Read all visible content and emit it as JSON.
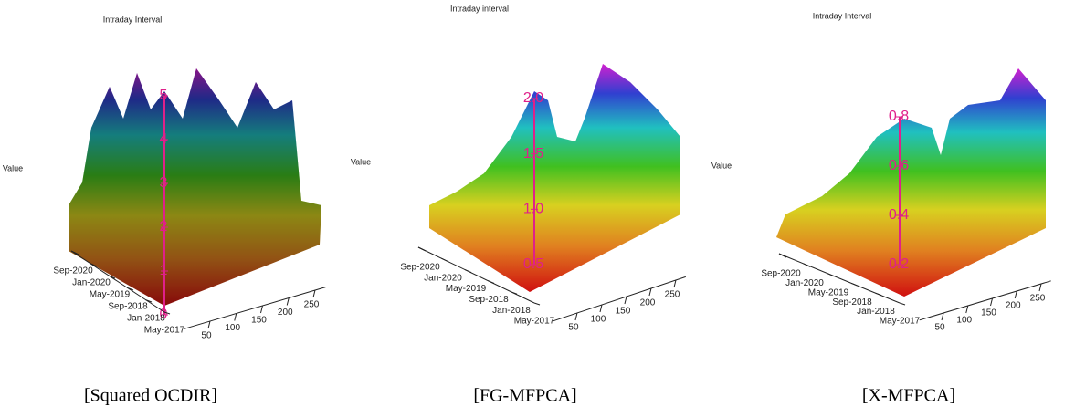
{
  "chart_data": [
    {
      "type": "surface",
      "caption": "[Squared OCDIR]",
      "x_label": "Intraday Interval",
      "z_label": "Value",
      "xlim": [
        1,
        270
      ],
      "xticks": [
        50,
        100,
        150,
        200,
        250
      ],
      "categories": [
        "Sep-2020",
        "Jan-2020",
        "May-2019",
        "Sep-2018",
        "Jan-2018",
        "May-2017"
      ],
      "zlim": [
        0,
        5
      ],
      "zticks": [
        0,
        1,
        2,
        3,
        4,
        5
      ]
    },
    {
      "type": "surface",
      "caption": "[FG-MFPCA]",
      "x_label": "Intraday interval",
      "z_label": "Value",
      "xlim": [
        1,
        270
      ],
      "xticks": [
        50,
        100,
        150,
        200,
        250
      ],
      "categories": [
        "Sep-2020",
        "Jan-2020",
        "May-2019",
        "Sep-2018",
        "Jan-2018",
        "May-2017"
      ],
      "zlim": [
        0.5,
        2.0
      ],
      "zticks": [
        0.5,
        {
          "value": 1.0,
          "label": "1.0"
        },
        1.5,
        {
          "value": 2.0,
          "label": "2.0"
        }
      ]
    },
    {
      "type": "surface",
      "caption": "[X-MFPCA]",
      "x_label": "Intraday Interval",
      "z_label": "Value",
      "xlim": [
        1,
        270
      ],
      "xticks": [
        50,
        100,
        150,
        200,
        250
      ],
      "categories": [
        "Sep-2020",
        "Jan-2020",
        "May-2019",
        "Sep-2018",
        "Jan-2018",
        "May-2017"
      ],
      "zlim": [
        0.2,
        0.8
      ],
      "zticks": [
        0.2,
        0.4,
        0.6,
        0.8
      ]
    }
  ]
}
